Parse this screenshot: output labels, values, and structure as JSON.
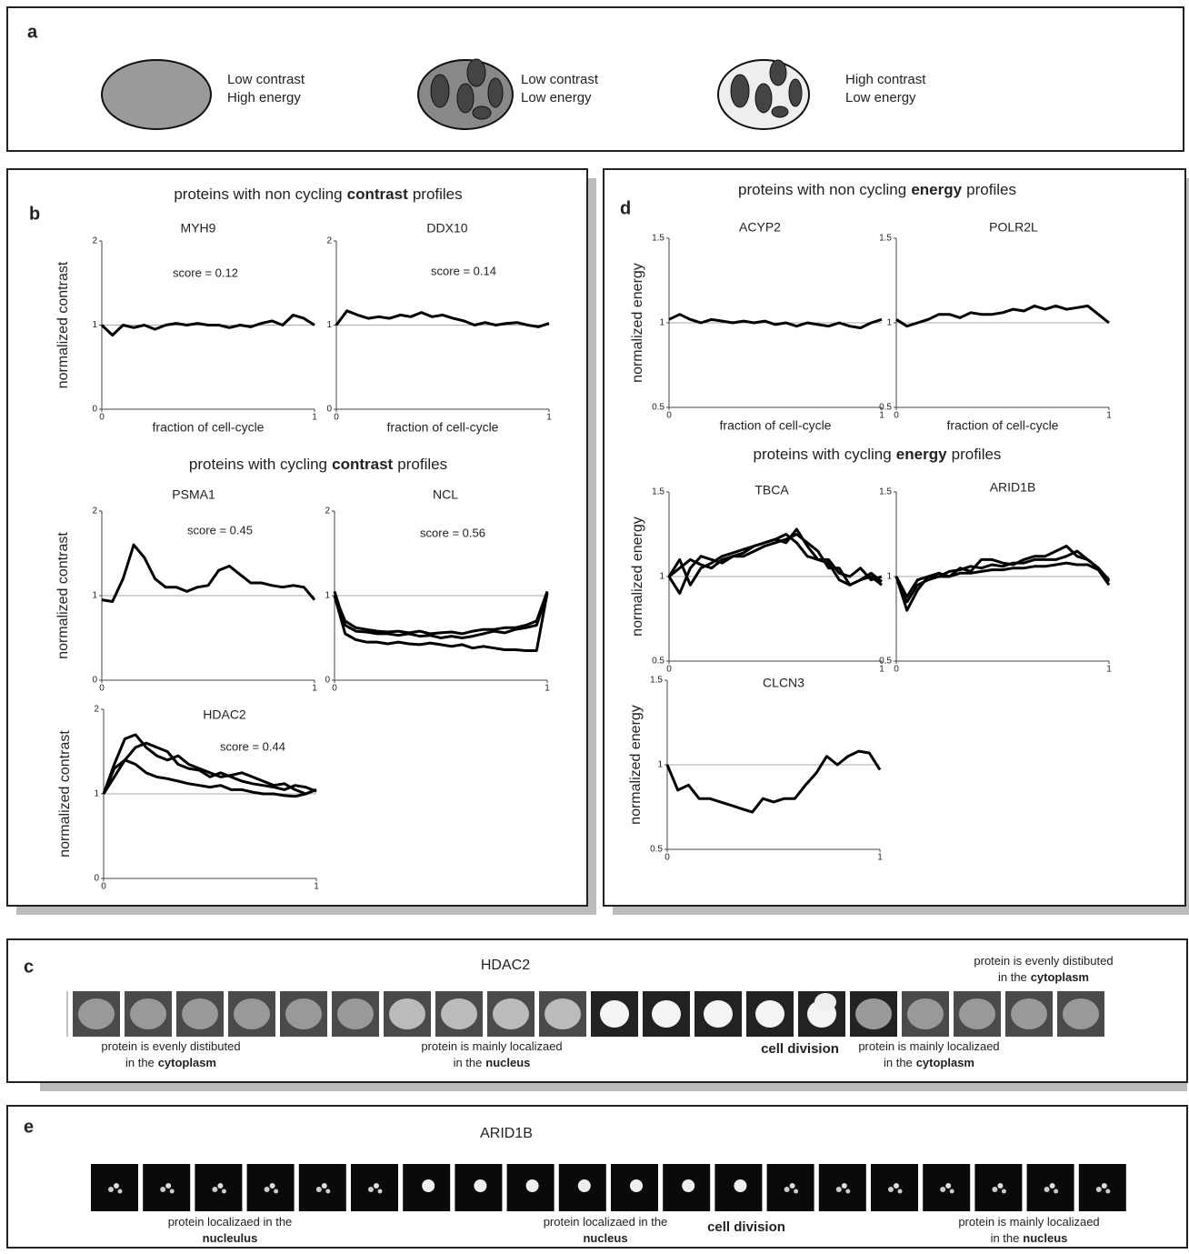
{
  "panel_a": {
    "letter": "a",
    "items": [
      {
        "line1": "Low contrast",
        "line2": "High energy"
      },
      {
        "line1": "Low contrast",
        "line2": "Low energy"
      },
      {
        "line1": "High contrast",
        "line2": "Low energy"
      }
    ]
  },
  "panel_b": {
    "letter": "b",
    "headings": [
      [
        {
          "text": "proteins with non cycling"
        },
        {
          "text": "contrast",
          "bold": true
        },
        {
          "text": "profiles"
        }
      ],
      [
        {
          "text": "proteins with cycling"
        },
        {
          "text": "contrast",
          "bold": true
        },
        {
          "text": "profiles"
        }
      ]
    ]
  },
  "panel_d": {
    "letter": "d",
    "headings": [
      [
        {
          "text": "proteins with non cycling"
        },
        {
          "text": "energy",
          "bold": true
        },
        {
          "text": "profiles"
        }
      ],
      [
        {
          "text": "proteins with cycling"
        },
        {
          "text": "energy",
          "bold": true
        },
        {
          "text": "profiles"
        }
      ]
    ]
  },
  "chart_data": [
    {
      "type": "line",
      "title": "MYH9",
      "annotation": "score = 0.12",
      "ylabel": "normalized contrast",
      "xlabel": "fraction of cell-cycle",
      "x": [
        0,
        0.05,
        0.1,
        0.15,
        0.2,
        0.25,
        0.3,
        0.35,
        0.4,
        0.45,
        0.5,
        0.55,
        0.6,
        0.65,
        0.7,
        0.75,
        0.8,
        0.85,
        0.9,
        0.95,
        1
      ],
      "xlim": [
        0,
        1
      ],
      "ylim": [
        0,
        2
      ],
      "xticks": [
        0,
        1
      ],
      "yticks": [
        0,
        1,
        2
      ],
      "reference_line": 1,
      "series": [
        {
          "color": "#000000",
          "values": [
            1,
            0.88,
            1.0,
            0.97,
            1.0,
            0.95,
            1.0,
            1.02,
            1.0,
            1.02,
            1.0,
            1.0,
            0.97,
            1.0,
            0.98,
            1.02,
            1.05,
            1.0,
            1.12,
            1.08,
            1.0
          ]
        }
      ]
    },
    {
      "type": "line",
      "title": "DDX10",
      "annotation": "score = 0.14",
      "xlabel": "fraction of cell-cycle",
      "x": [
        0,
        0.05,
        0.1,
        0.15,
        0.2,
        0.25,
        0.3,
        0.35,
        0.4,
        0.45,
        0.5,
        0.55,
        0.6,
        0.65,
        0.7,
        0.75,
        0.8,
        0.85,
        0.9,
        0.95,
        1
      ],
      "xlim": [
        0,
        1
      ],
      "ylim": [
        0,
        2
      ],
      "xticks": [
        0,
        1
      ],
      "yticks": [
        0,
        1,
        2
      ],
      "reference_line": 1,
      "series": [
        {
          "color": "#000000",
          "values": [
            1.0,
            1.17,
            1.12,
            1.08,
            1.1,
            1.08,
            1.12,
            1.1,
            1.15,
            1.1,
            1.12,
            1.08,
            1.05,
            1.0,
            1.03,
            1.0,
            1.02,
            1.03,
            1.0,
            0.98,
            1.02
          ]
        }
      ]
    },
    {
      "type": "line",
      "title": "PSMA1",
      "annotation": "score = 0.45",
      "ylabel": "normalized contrast",
      "x": [
        0,
        0.05,
        0.1,
        0.15,
        0.2,
        0.25,
        0.3,
        0.35,
        0.4,
        0.45,
        0.5,
        0.55,
        0.6,
        0.65,
        0.7,
        0.75,
        0.8,
        0.85,
        0.9,
        0.95,
        1
      ],
      "xlim": [
        0,
        1
      ],
      "ylim": [
        0,
        2
      ],
      "xticks": [
        0,
        1
      ],
      "yticks": [
        0,
        1,
        2
      ],
      "reference_line": 1,
      "series": [
        {
          "color": "#000000",
          "values": [
            0.95,
            0.93,
            1.2,
            1.6,
            1.45,
            1.2,
            1.1,
            1.1,
            1.05,
            1.1,
            1.12,
            1.3,
            1.35,
            1.25,
            1.15,
            1.15,
            1.12,
            1.1,
            1.12,
            1.1,
            0.95
          ]
        }
      ]
    },
    {
      "type": "line",
      "title": "NCL",
      "annotation": "score = 0.56",
      "x": [
        0,
        0.05,
        0.1,
        0.15,
        0.2,
        0.25,
        0.3,
        0.35,
        0.4,
        0.45,
        0.5,
        0.55,
        0.6,
        0.65,
        0.7,
        0.75,
        0.8,
        0.85,
        0.9,
        0.95,
        1
      ],
      "xlim": [
        0,
        1
      ],
      "ylim": [
        0,
        2
      ],
      "xticks": [
        0,
        1
      ],
      "yticks": [
        0,
        1,
        2
      ],
      "reference_line": 1,
      "series": [
        {
          "color": "#000000",
          "values": [
            1.0,
            0.7,
            0.62,
            0.6,
            0.58,
            0.57,
            0.58,
            0.56,
            0.58,
            0.55,
            0.56,
            0.57,
            0.55,
            0.58,
            0.6,
            0.6,
            0.62,
            0.62,
            0.65,
            0.7,
            1.05
          ]
        },
        {
          "color": "#000000",
          "values": [
            1.05,
            0.65,
            0.58,
            0.57,
            0.55,
            0.55,
            0.53,
            0.55,
            0.52,
            0.53,
            0.5,
            0.52,
            0.5,
            0.52,
            0.55,
            0.58,
            0.56,
            0.6,
            0.62,
            0.65,
            1.02
          ]
        },
        {
          "color": "#000000",
          "values": [
            1.0,
            0.55,
            0.48,
            0.45,
            0.45,
            0.43,
            0.45,
            0.43,
            0.42,
            0.44,
            0.42,
            0.4,
            0.42,
            0.38,
            0.4,
            0.38,
            0.36,
            0.36,
            0.35,
            0.35,
            1.03
          ]
        }
      ]
    },
    {
      "type": "line",
      "title": "HDAC2",
      "annotation": "score = 0.44",
      "ylabel": "normalized contrast",
      "x": [
        0,
        0.05,
        0.1,
        0.15,
        0.2,
        0.25,
        0.3,
        0.35,
        0.4,
        0.45,
        0.5,
        0.55,
        0.6,
        0.65,
        0.7,
        0.75,
        0.8,
        0.85,
        0.9,
        0.95,
        1
      ],
      "xlim": [
        0,
        1
      ],
      "ylim": [
        0,
        2
      ],
      "xticks": [
        0,
        1
      ],
      "yticks": [
        0,
        1,
        2
      ],
      "reference_line": 1,
      "series": [
        {
          "color": "#000000",
          "values": [
            1.0,
            1.35,
            1.65,
            1.7,
            1.55,
            1.45,
            1.4,
            1.45,
            1.35,
            1.3,
            1.25,
            1.2,
            1.22,
            1.25,
            1.2,
            1.15,
            1.1,
            1.12,
            1.05,
            1.0,
            1.05
          ]
        },
        {
          "color": "#000000",
          "values": [
            1.0,
            1.2,
            1.4,
            1.55,
            1.6,
            1.55,
            1.5,
            1.35,
            1.3,
            1.28,
            1.2,
            1.25,
            1.2,
            1.15,
            1.12,
            1.1,
            1.08,
            1.05,
            1.1,
            1.08,
            1.03
          ]
        },
        {
          "color": "#000000",
          "values": [
            1.0,
            1.3,
            1.4,
            1.35,
            1.25,
            1.2,
            1.18,
            1.15,
            1.12,
            1.1,
            1.08,
            1.1,
            1.05,
            1.05,
            1.02,
            1.0,
            1.0,
            0.98,
            0.97,
            1.0,
            1.05
          ]
        }
      ]
    },
    {
      "type": "line",
      "title": "ACYP2",
      "ylabel": "normalized energy",
      "xlabel": "fraction of cell-cycle",
      "x": [
        0,
        0.05,
        0.1,
        0.15,
        0.2,
        0.25,
        0.3,
        0.35,
        0.4,
        0.45,
        0.5,
        0.55,
        0.6,
        0.65,
        0.7,
        0.75,
        0.8,
        0.85,
        0.9,
        0.95,
        1
      ],
      "xlim": [
        0,
        1
      ],
      "ylim": [
        0.5,
        1.5
      ],
      "xticks": [
        0,
        1
      ],
      "yticks": [
        0.5,
        1,
        1.5
      ],
      "reference_line": 1,
      "series": [
        {
          "color": "#000000",
          "values": [
            1.02,
            1.05,
            1.02,
            1.0,
            1.02,
            1.01,
            1.0,
            1.01,
            1.0,
            1.01,
            0.99,
            1.0,
            0.98,
            1.0,
            0.99,
            0.98,
            1.0,
            0.98,
            0.97,
            1.0,
            1.02
          ]
        }
      ]
    },
    {
      "type": "line",
      "title": "POLR2L",
      "xlabel": "fraction of cell-cycle",
      "x": [
        0,
        0.05,
        0.1,
        0.15,
        0.2,
        0.25,
        0.3,
        0.35,
        0.4,
        0.45,
        0.5,
        0.55,
        0.6,
        0.65,
        0.7,
        0.75,
        0.8,
        0.85,
        0.9,
        0.95,
        1
      ],
      "xlim": [
        0,
        1
      ],
      "ylim": [
        0.5,
        1.5
      ],
      "xticks": [
        0,
        1
      ],
      "yticks": [
        0.5,
        1,
        1.5
      ],
      "reference_line": 1,
      "series": [
        {
          "color": "#000000",
          "values": [
            1.02,
            0.98,
            1.0,
            1.02,
            1.05,
            1.05,
            1.03,
            1.06,
            1.05,
            1.05,
            1.06,
            1.08,
            1.07,
            1.1,
            1.08,
            1.1,
            1.08,
            1.09,
            1.1,
            1.05,
            1.0
          ]
        }
      ]
    },
    {
      "type": "line",
      "title": "TBCA",
      "ylabel": "normalized energy",
      "x": [
        0,
        0.05,
        0.1,
        0.15,
        0.2,
        0.25,
        0.3,
        0.35,
        0.4,
        0.45,
        0.5,
        0.55,
        0.6,
        0.65,
        0.7,
        0.75,
        0.8,
        0.85,
        0.9,
        0.95,
        1
      ],
      "xlim": [
        0,
        1
      ],
      "ylim": [
        0.5,
        1.5
      ],
      "xticks": [
        0,
        1
      ],
      "yticks": [
        0.5,
        1,
        1.5
      ],
      "reference_line": 1,
      "series": [
        {
          "color": "#000000",
          "values": [
            1.0,
            0.9,
            1.05,
            1.12,
            1.1,
            1.08,
            1.12,
            1.12,
            1.15,
            1.18,
            1.2,
            1.22,
            1.25,
            1.2,
            1.15,
            1.05,
            1.05,
            0.95,
            0.98,
            1.0,
            0.95
          ]
        },
        {
          "color": "#000000",
          "values": [
            1.0,
            1.05,
            1.1,
            1.07,
            1.05,
            1.1,
            1.12,
            1.14,
            1.18,
            1.2,
            1.22,
            1.2,
            1.28,
            1.18,
            1.1,
            1.1,
            1.02,
            1.0,
            1.05,
            0.98,
            1.0
          ]
        },
        {
          "color": "#000000",
          "values": [
            1.0,
            1.1,
            0.95,
            1.05,
            1.08,
            1.12,
            1.14,
            1.16,
            1.18,
            1.2,
            1.22,
            1.25,
            1.2,
            1.12,
            1.1,
            1.08,
            0.98,
            0.95,
            0.98,
            1.02,
            0.97
          ]
        }
      ]
    },
    {
      "type": "line",
      "title": "ARID1B",
      "x": [
        0,
        0.05,
        0.1,
        0.15,
        0.2,
        0.25,
        0.3,
        0.35,
        0.4,
        0.45,
        0.5,
        0.55,
        0.6,
        0.65,
        0.7,
        0.75,
        0.8,
        0.85,
        0.9,
        0.95,
        1
      ],
      "xlim": [
        0,
        1
      ],
      "ylim": [
        0.5,
        1.5
      ],
      "xticks": [
        0,
        1
      ],
      "yticks": [
        0.5,
        1,
        1.5
      ],
      "reference_line": 1,
      "series": [
        {
          "color": "#000000",
          "values": [
            1.0,
            0.8,
            0.92,
            1.0,
            1.02,
            1.0,
            1.05,
            1.03,
            1.1,
            1.1,
            1.08,
            1.07,
            1.1,
            1.12,
            1.12,
            1.15,
            1.18,
            1.12,
            1.1,
            1.05,
            0.97
          ]
        },
        {
          "color": "#000000",
          "values": [
            1.0,
            0.85,
            0.95,
            0.98,
            1.0,
            1.03,
            1.04,
            1.06,
            1.05,
            1.07,
            1.06,
            1.08,
            1.08,
            1.1,
            1.1,
            1.1,
            1.12,
            1.15,
            1.1,
            1.05,
            0.98
          ]
        },
        {
          "color": "#000000",
          "values": [
            1.0,
            0.88,
            0.98,
            1.0,
            1.0,
            1.0,
            1.02,
            1.02,
            1.03,
            1.04,
            1.04,
            1.05,
            1.05,
            1.06,
            1.06,
            1.07,
            1.08,
            1.07,
            1.07,
            1.04,
            0.95
          ]
        }
      ]
    },
    {
      "type": "line",
      "title": "CLCN3",
      "ylabel": "normalized energy",
      "x": [
        0,
        0.05,
        0.1,
        0.15,
        0.2,
        0.25,
        0.3,
        0.35,
        0.4,
        0.45,
        0.5,
        0.55,
        0.6,
        0.65,
        0.7,
        0.75,
        0.8,
        0.85,
        0.9,
        0.95,
        1
      ],
      "xlim": [
        0,
        1
      ],
      "ylim": [
        0.5,
        1.5
      ],
      "xticks": [
        0,
        1
      ],
      "yticks": [
        0.5,
        1,
        1.5
      ],
      "reference_line": 1,
      "series": [
        {
          "color": "#000000",
          "values": [
            1.0,
            0.85,
            0.88,
            0.8,
            0.8,
            0.78,
            0.76,
            0.74,
            0.72,
            0.8,
            0.78,
            0.8,
            0.8,
            0.88,
            0.95,
            1.05,
            1.0,
            1.05,
            1.08,
            1.07,
            0.97
          ]
        }
      ]
    }
  ],
  "panel_c": {
    "letter": "c",
    "title": "HDAC2",
    "captions": [
      {
        "lines": [
          [
            {
              "text": "protein is evenly distibuted"
            }
          ],
          [
            {
              "text": "in the"
            },
            {
              "text": "cytoplasm",
              "bold": true
            }
          ]
        ]
      },
      {
        "lines": [
          [
            {
              "text": "protein is mainly localizaed"
            }
          ],
          [
            {
              "text": "in the"
            },
            {
              "text": "nucleus",
              "bold": true
            }
          ]
        ]
      },
      {
        "lines": [
          [
            {
              "text": "cell division",
              "bold": true
            }
          ]
        ]
      },
      {
        "lines": [
          [
            {
              "text": "protein is mainly localizaed"
            }
          ],
          [
            {
              "text": "in the"
            },
            {
              "text": "cytoplasm",
              "bold": true
            }
          ]
        ]
      },
      {
        "lines": [
          [
            {
              "text": "protein is evenly distibuted"
            }
          ],
          [
            {
              "text": "in the"
            },
            {
              "text": "cytoplasm",
              "bold": true
            }
          ]
        ]
      }
    ]
  },
  "panel_e": {
    "letter": "e",
    "title": "ARID1B",
    "captions": [
      {
        "lines": [
          [
            {
              "text": "protein localizaed in the"
            }
          ],
          [
            {
              "text": "nucleulus",
              "bold": true
            }
          ]
        ]
      },
      {
        "lines": [
          [
            {
              "text": "protein localizaed in the"
            }
          ],
          [
            {
              "text": "nucleus",
              "bold": true
            }
          ]
        ]
      },
      {
        "lines": [
          [
            {
              "text": "cell division",
              "bold": true
            }
          ]
        ]
      },
      {
        "lines": [
          [
            {
              "text": "protein is mainly localizaed"
            }
          ],
          [
            {
              "text": "in the"
            },
            {
              "text": "nucleus",
              "bold": true
            }
          ]
        ]
      }
    ]
  }
}
